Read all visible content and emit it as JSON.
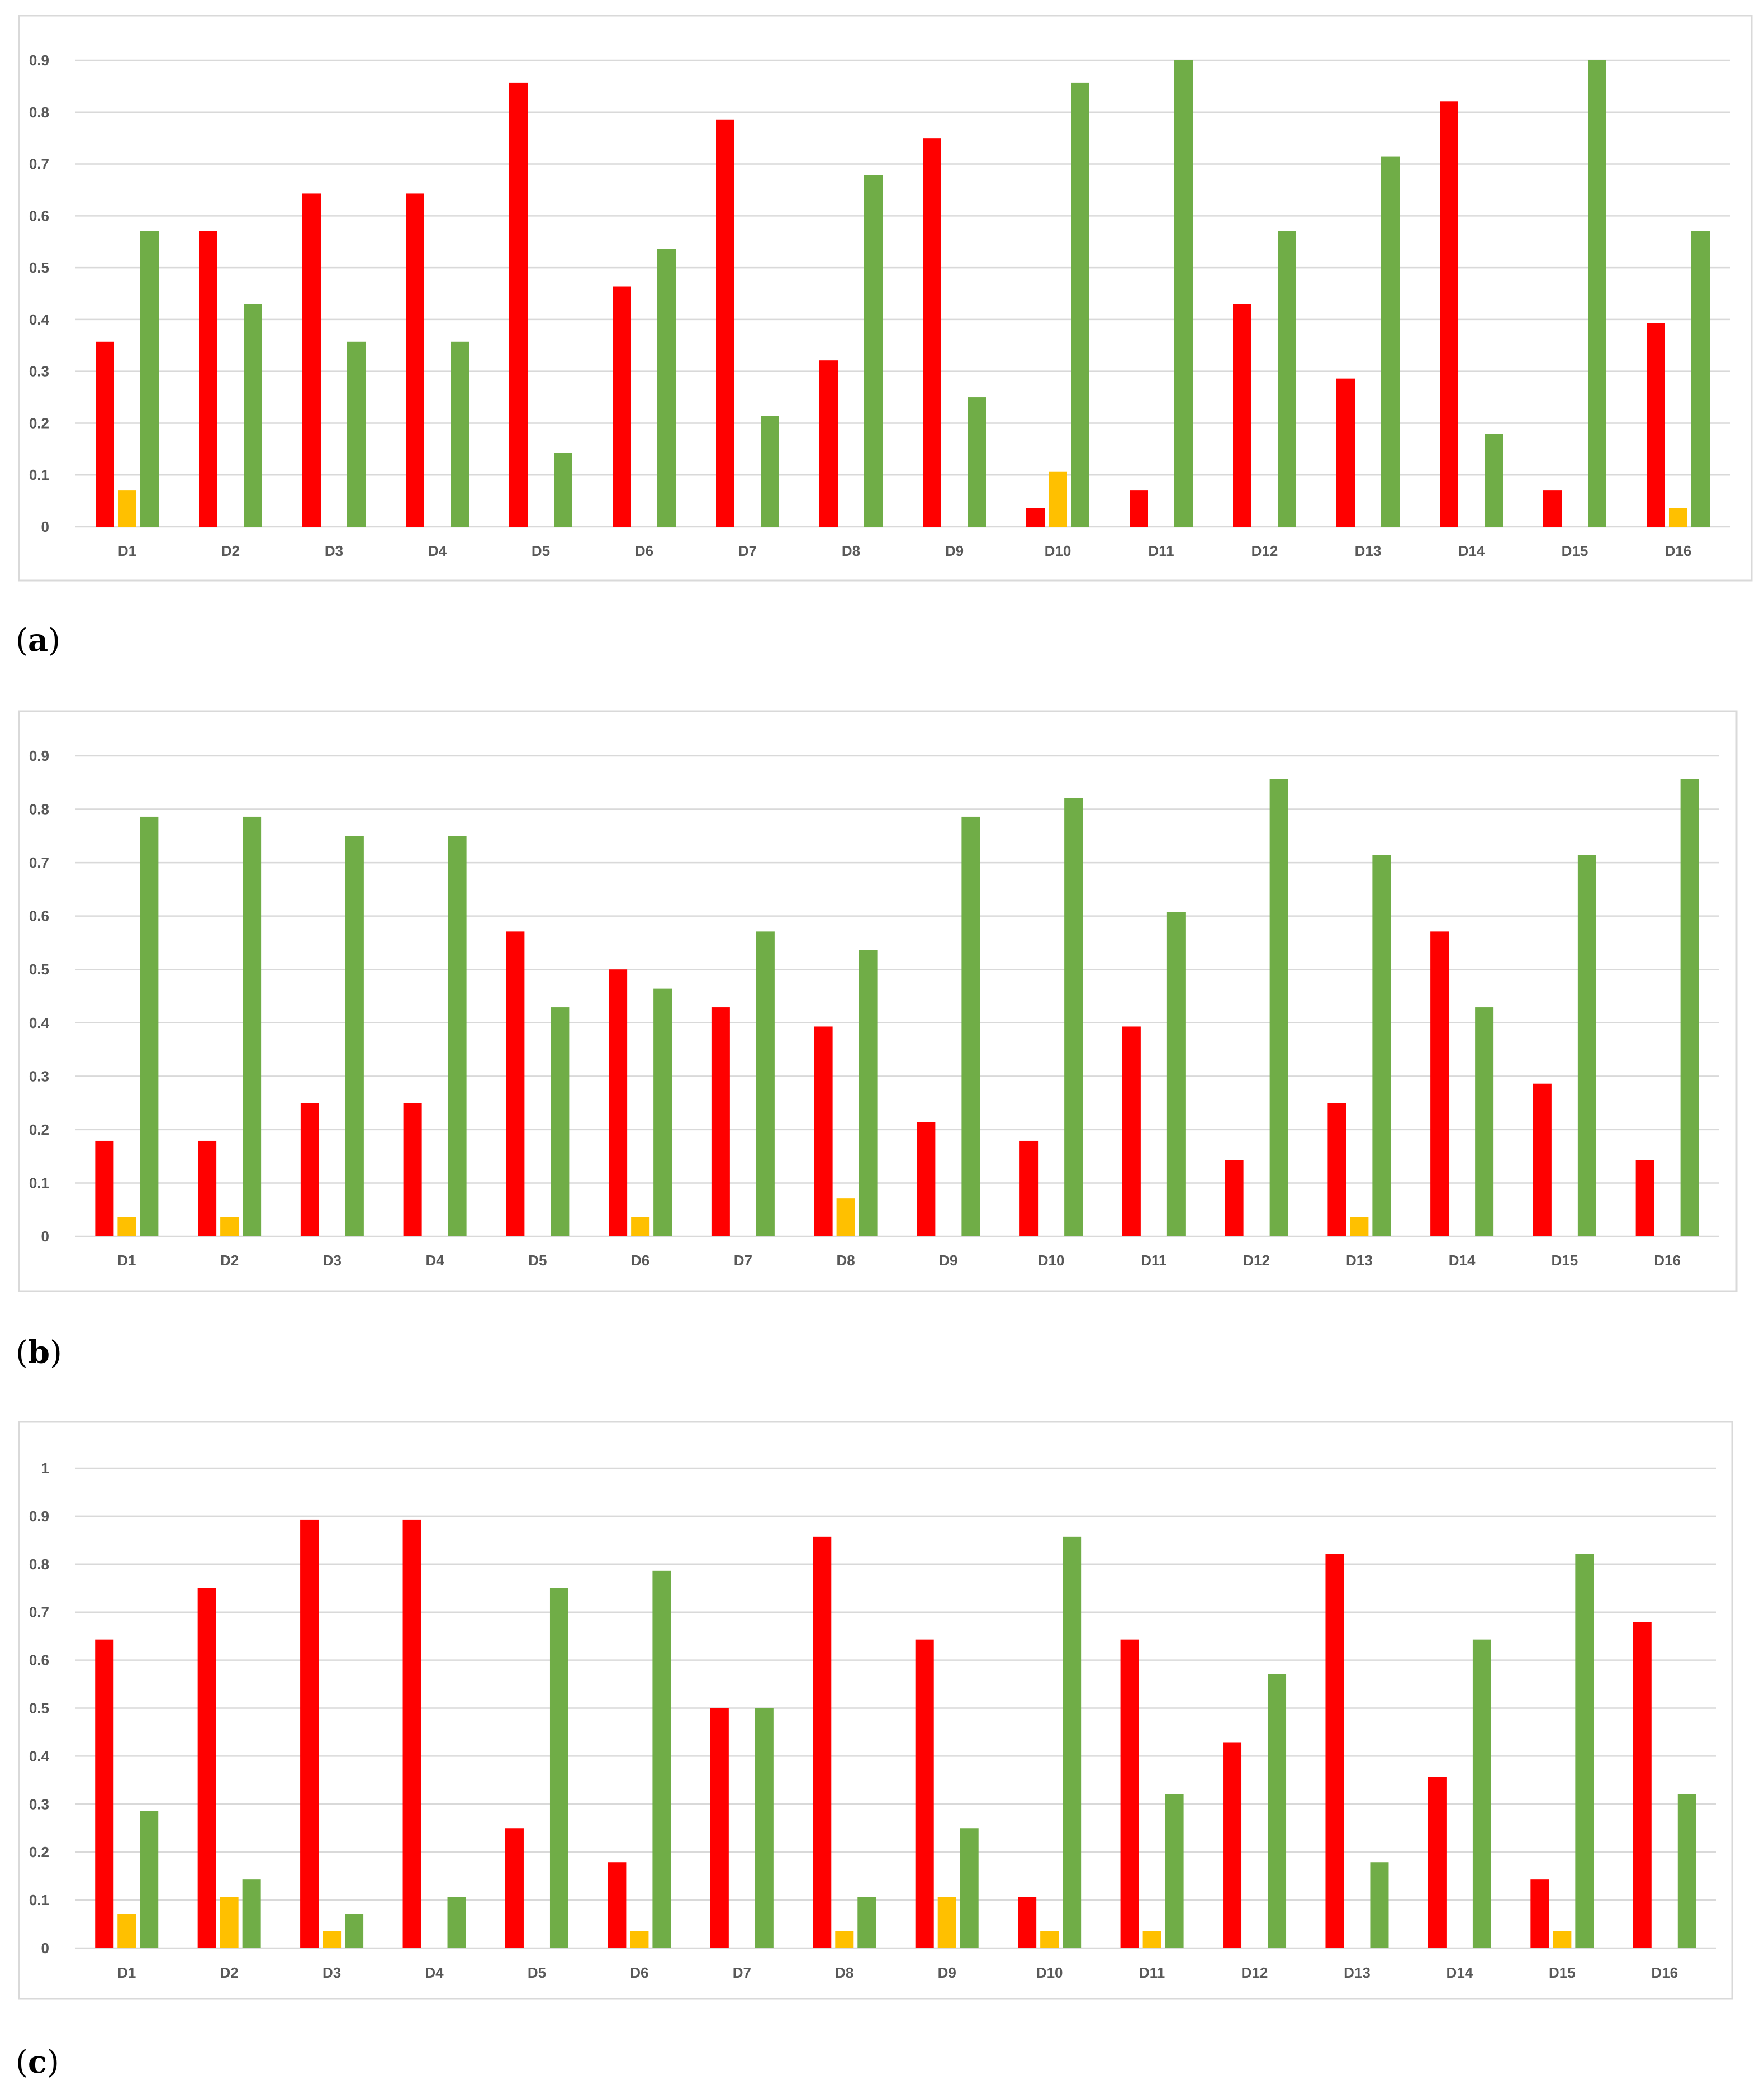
{
  "colors": {
    "red": "#ff0000",
    "yellow": "#ffc000",
    "green": "#70ad47",
    "grid": "#d9d9d9",
    "tick_text": "#595959"
  },
  "chart_data": [
    {
      "type": "bar",
      "panel": "a",
      "categories": [
        "D1",
        "D2",
        "D3",
        "D4",
        "D5",
        "D6",
        "D7",
        "D8",
        "D9",
        "D10",
        "D11",
        "D12",
        "D13",
        "D14",
        "D15",
        "D16"
      ],
      "ylim": [
        0,
        0.9
      ],
      "yticks": [
        "0",
        "0.1",
        "0.2",
        "0.3",
        "0.4",
        "0.5",
        "0.6",
        "0.7",
        "0.8",
        "0.9"
      ],
      "grid": true,
      "series": [
        {
          "color": "red",
          "values": [
            0.357,
            0.571,
            0.643,
            0.643,
            0.857,
            0.464,
            0.786,
            0.321,
            0.75,
            0.036,
            0.071,
            0.429,
            0.286,
            0.821,
            0.071,
            0.393
          ]
        },
        {
          "color": "yellow",
          "values": [
            0.071,
            0,
            0,
            0,
            0,
            0,
            0,
            0,
            0,
            0.107,
            0,
            0,
            0,
            0,
            0,
            0.036
          ]
        },
        {
          "color": "green",
          "values": [
            0.571,
            0.429,
            0.357,
            0.357,
            0.143,
            0.536,
            0.214,
            0.679,
            0.25,
            0.857,
            0.9,
            0.571,
            0.714,
            0.179,
            0.9,
            0.571
          ]
        }
      ]
    },
    {
      "type": "bar",
      "panel": "b",
      "categories": [
        "D1",
        "D2",
        "D3",
        "D4",
        "D5",
        "D6",
        "D7",
        "D8",
        "D9",
        "D10",
        "D11",
        "D12",
        "D13",
        "D14",
        "D15",
        "D16"
      ],
      "ylim": [
        0,
        0.9
      ],
      "yticks": [
        "0",
        "0.1",
        "0.2",
        "0.3",
        "0.4",
        "0.5",
        "0.6",
        "0.7",
        "0.8",
        "0.9"
      ],
      "grid": true,
      "series": [
        {
          "color": "red",
          "values": [
            0.179,
            0.179,
            0.25,
            0.25,
            0.571,
            0.5,
            0.429,
            0.393,
            0.214,
            0.179,
            0.393,
            0.143,
            0.25,
            0.571,
            0.286,
            0.143
          ]
        },
        {
          "color": "yellow",
          "values": [
            0.036,
            0.036,
            0,
            0,
            0,
            0.036,
            0,
            0.071,
            0,
            0,
            0,
            0,
            0.036,
            0,
            0,
            0
          ]
        },
        {
          "color": "green",
          "values": [
            0.786,
            0.786,
            0.75,
            0.75,
            0.429,
            0.464,
            0.571,
            0.536,
            0.786,
            0.821,
            0.607,
            0.857,
            0.714,
            0.429,
            0.714,
            0.857
          ]
        }
      ]
    },
    {
      "type": "bar",
      "panel": "c",
      "categories": [
        "D1",
        "D2",
        "D3",
        "D4",
        "D5",
        "D6",
        "D7",
        "D8",
        "D9",
        "D10",
        "D11",
        "D12",
        "D13",
        "D14",
        "D15",
        "D16"
      ],
      "ylim": [
        0,
        1
      ],
      "yticks": [
        "0",
        "0.1",
        "0.2",
        "0.3",
        "0.4",
        "0.5",
        "0.6",
        "0.7",
        "0.8",
        "0.9",
        "1"
      ],
      "grid": true,
      "series": [
        {
          "color": "red",
          "values": [
            0.643,
            0.75,
            0.893,
            0.893,
            0.25,
            0.179,
            0.5,
            0.857,
            0.643,
            0.107,
            0.643,
            0.429,
            0.821,
            0.357,
            0.143,
            0.679
          ]
        },
        {
          "color": "yellow",
          "values": [
            0.071,
            0.107,
            0.036,
            0,
            0,
            0.036,
            0,
            0.036,
            0.107,
            0.036,
            0.036,
            0,
            0,
            0,
            0.036,
            0
          ]
        },
        {
          "color": "green",
          "values": [
            0.286,
            0.143,
            0.071,
            0.107,
            0.75,
            0.786,
            0.5,
            0.107,
            0.25,
            0.857,
            0.321,
            0.571,
            0.179,
            0.643,
            0.821,
            0.321
          ]
        }
      ]
    }
  ],
  "panel_labels": [
    "a",
    "b",
    "c"
  ]
}
